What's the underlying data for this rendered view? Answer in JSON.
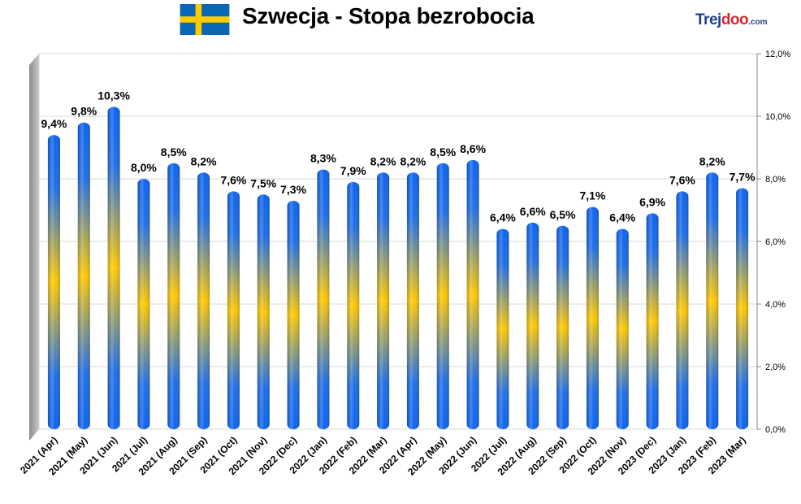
{
  "header": {
    "title": "Szwecja - Stopa bezrobocia",
    "brand": {
      "main": "Trej",
      "accent": "doo",
      "domain": ".com"
    },
    "flag": {
      "field_color": "#0a67b4",
      "cross_color": "#fecb00"
    }
  },
  "colors": {
    "bar_blue": "#0b63f0",
    "bar_yellow": "#ffc800",
    "grid": "#d9d9d9",
    "wall": "#a6a6a6"
  },
  "chart_data": {
    "type": "bar",
    "title": "Szwecja - Stopa bezrobocia",
    "xlabel": "",
    "ylabel": "",
    "ylim": [
      0,
      12
    ],
    "y_ticks": [
      "0,0%",
      "2,0%",
      "4,0%",
      "6,0%",
      "8,0%",
      "10,0%",
      "12,0%"
    ],
    "y_axis_side": "right",
    "grid": true,
    "categories": [
      "2021 (Apr)",
      "2021 (May)",
      "2021 (Jun)",
      "2021 (Jul)",
      "2021 (Aug)",
      "2021 (Sep)",
      "2021 (Oct)",
      "2021 (Nov)",
      "2022 (Dec)",
      "2022 (Jan)",
      "2022 (Feb)",
      "2022 (Mar)",
      "2022 (Apr)",
      "2022 (May)",
      "2022 (Jun)",
      "2022 (Jul)",
      "2022 (Aug)",
      "2022 (Sep)",
      "2022 (Oct)",
      "2022 (Nov)",
      "2023 (Dec)",
      "2023 (Jan)",
      "2023 (Feb)",
      "2023 (Mar)"
    ],
    "values": [
      9.4,
      9.8,
      10.3,
      8.0,
      8.5,
      8.2,
      7.6,
      7.5,
      7.3,
      8.3,
      7.9,
      8.2,
      8.2,
      8.5,
      8.6,
      6.4,
      6.6,
      6.5,
      7.1,
      6.4,
      6.9,
      7.6,
      8.2,
      7.7
    ],
    "labels": [
      "9,4%",
      "9,8%",
      "10,3%",
      "8,0%",
      "8,5%",
      "8,2%",
      "7,6%",
      "7,5%",
      "7,3%",
      "8,3%",
      "7,9%",
      "8,2%",
      "8,2%",
      "8,5%",
      "8,6%",
      "6,4%",
      "6,6%",
      "6,5%",
      "7,1%",
      "6,4%",
      "6,9%",
      "7,6%",
      "8,2%",
      "7,7%"
    ]
  }
}
